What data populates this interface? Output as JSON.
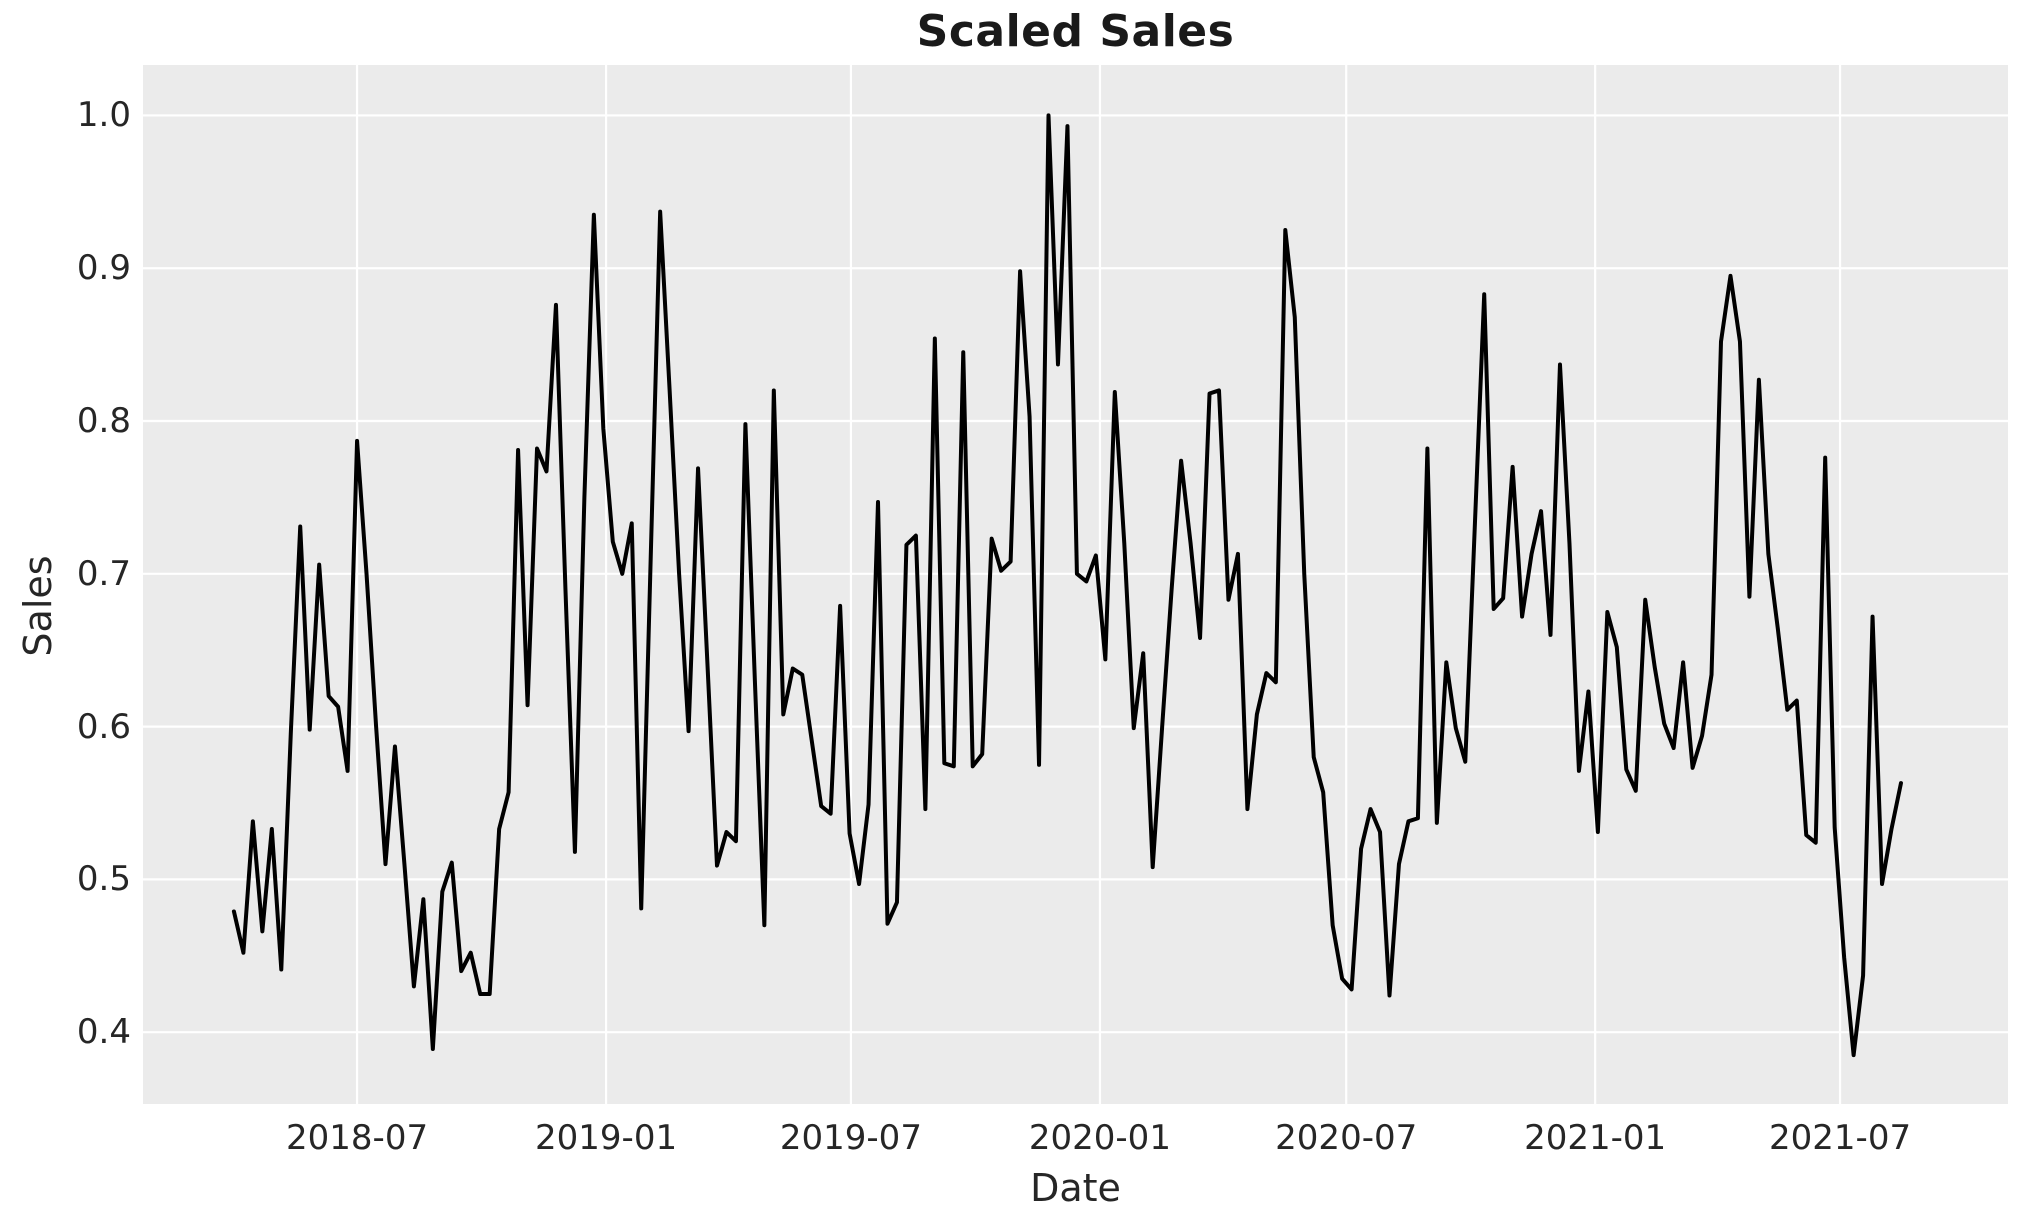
{
  "chart_data": {
    "type": "line",
    "title": "Scaled Sales",
    "xlabel": "Date",
    "ylabel": "Sales",
    "legend": "none",
    "grid": "on",
    "plot_bg_color": "#ebebeb",
    "figure_bg_color": "#ffffff",
    "grid_color": "#ffffff",
    "text_color": "#262626",
    "line_color": "#000000",
    "line_width": 4,
    "ylim": {
      "min": 0.353,
      "max": 1.033
    },
    "xlim_weeks": {
      "min": -9.6,
      "max": 187.3
    },
    "y_ticks": [
      {
        "label": "0.4",
        "value": 0.4
      },
      {
        "label": "0.5",
        "value": 0.5
      },
      {
        "label": "0.6",
        "value": 0.6
      },
      {
        "label": "0.7",
        "value": 0.7
      },
      {
        "label": "0.8",
        "value": 0.8
      },
      {
        "label": "0.9",
        "value": 0.9
      },
      {
        "label": "1.0",
        "value": 1.0
      }
    ],
    "x_ticks": [
      {
        "label": "2018-07",
        "week": 13.0
      },
      {
        "label": "2019-01",
        "week": 39.29
      },
      {
        "label": "2019-07",
        "week": 65.14
      },
      {
        "label": "2020-01",
        "week": 91.43
      },
      {
        "label": "2020-07",
        "week": 117.43
      },
      {
        "label": "2021-01",
        "week": 143.71
      },
      {
        "label": "2021-07",
        "week": 169.57
      }
    ],
    "series": [
      {
        "name": "Sales (scaled)",
        "start_date": "2018-04-01",
        "frequency": "weekly",
        "values": [
          0.479,
          0.452,
          0.538,
          0.466,
          0.533,
          0.441,
          0.595,
          0.731,
          0.598,
          0.706,
          0.62,
          0.613,
          0.571,
          0.787,
          0.7,
          0.601,
          0.51,
          0.587,
          0.51,
          0.43,
          0.487,
          0.389,
          0.492,
          0.511,
          0.44,
          0.452,
          0.425,
          0.425,
          0.533,
          0.557,
          0.781,
          0.614,
          0.782,
          0.767,
          0.876,
          0.69,
          0.518,
          0.75,
          0.935,
          0.795,
          0.721,
          0.7,
          0.733,
          0.481,
          0.71,
          0.937,
          0.82,
          0.7,
          0.597,
          0.769,
          0.64,
          0.509,
          0.531,
          0.525,
          0.798,
          0.63,
          0.47,
          0.82,
          0.608,
          0.638,
          0.634,
          0.591,
          0.548,
          0.543,
          0.679,
          0.53,
          0.497,
          0.549,
          0.747,
          0.471,
          0.485,
          0.719,
          0.725,
          0.546,
          0.854,
          0.576,
          0.574,
          0.845,
          0.574,
          0.582,
          0.723,
          0.702,
          0.708,
          0.898,
          0.803,
          0.575,
          1.0,
          0.837,
          0.993,
          0.7,
          0.695,
          0.712,
          0.644,
          0.819,
          0.72,
          0.599,
          0.648,
          0.508,
          0.6,
          0.69,
          0.774,
          0.72,
          0.658,
          0.818,
          0.82,
          0.683,
          0.713,
          0.546,
          0.608,
          0.635,
          0.629,
          0.925,
          0.868,
          0.7,
          0.58,
          0.557,
          0.47,
          0.435,
          0.428,
          0.52,
          0.546,
          0.531,
          0.424,
          0.51,
          0.538,
          0.54,
          0.782,
          0.537,
          0.642,
          0.599,
          0.577,
          0.73,
          0.883,
          0.677,
          0.684,
          0.77,
          0.672,
          0.713,
          0.741,
          0.66,
          0.837,
          0.72,
          0.571,
          0.623,
          0.531,
          0.675,
          0.652,
          0.572,
          0.558,
          0.683,
          0.639,
          0.602,
          0.586,
          0.642,
          0.573,
          0.594,
          0.634,
          0.852,
          0.895,
          0.852,
          0.685,
          0.827,
          0.713,
          0.664,
          0.611,
          0.617,
          0.529,
          0.524,
          0.776,
          0.534,
          0.449,
          0.385,
          0.437,
          0.672,
          0.497,
          0.533,
          0.563
        ]
      }
    ]
  }
}
